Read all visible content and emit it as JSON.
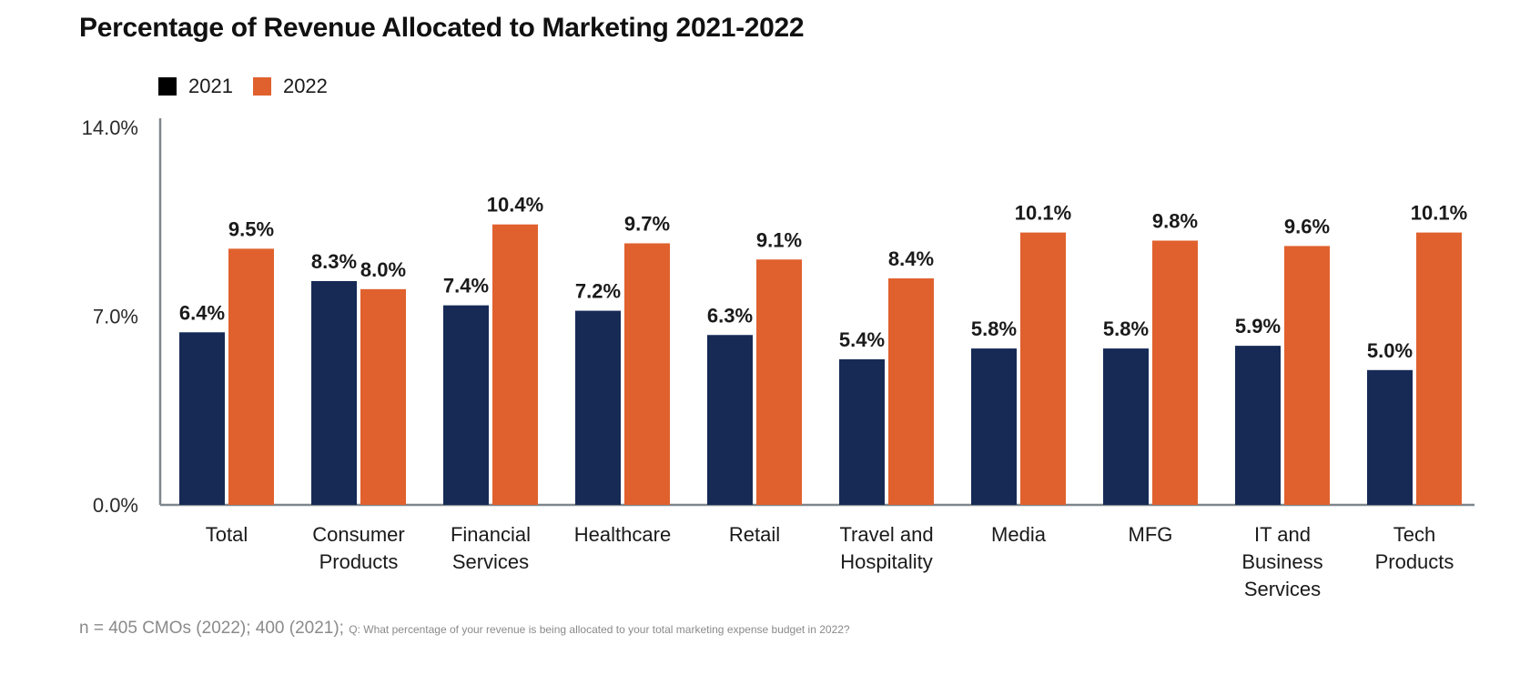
{
  "chart_data": {
    "type": "bar",
    "title": "Percentage of Revenue Allocated to Marketing 2021-2022",
    "xlabel": "",
    "ylabel": "",
    "ylim": [
      0,
      14
    ],
    "yticks": [
      {
        "value": 0,
        "label": "0.0%"
      },
      {
        "value": 7,
        "label": "7.0%"
      },
      {
        "value": 14,
        "label": "14.0%"
      }
    ],
    "grid": false,
    "legend_position": "top-left",
    "categories": [
      [
        "Total"
      ],
      [
        "Consumer",
        "Products"
      ],
      [
        "Financial",
        "Services"
      ],
      [
        "Healthcare"
      ],
      [
        "Retail"
      ],
      [
        "Travel and",
        "Hospitality"
      ],
      [
        "Media"
      ],
      [
        "MFG"
      ],
      [
        "IT and",
        "Business",
        "Services"
      ],
      [
        "Tech",
        "Products"
      ]
    ],
    "series": [
      {
        "name": "2021",
        "color": "#172a56",
        "values": [
          6.4,
          8.3,
          7.4,
          7.2,
          6.3,
          5.4,
          5.8,
          5.8,
          5.9,
          5.0
        ],
        "labels": [
          "6.4%",
          "8.3%",
          "7.4%",
          "7.2%",
          "6.3%",
          "5.4%",
          "5.8%",
          "5.8%",
          "5.9%",
          "5.0%"
        ]
      },
      {
        "name": "2022",
        "color": "#e0612e",
        "values": [
          9.5,
          8.0,
          10.4,
          9.7,
          9.1,
          8.4,
          10.1,
          9.8,
          9.6,
          10.1
        ],
        "labels": [
          "9.5%",
          "8.0%",
          "10.4%",
          "9.7%",
          "9.1%",
          "8.4%",
          "10.1%",
          "9.8%",
          "9.6%",
          "10.1%"
        ]
      }
    ]
  },
  "legend": {
    "items": [
      {
        "label": "2021",
        "color": "#000000"
      },
      {
        "label": "2022",
        "color": "#e0612e"
      }
    ]
  },
  "footnote": {
    "sample": "n = 405 CMOs (2022); 400 (2021);",
    "question": "Q: What percentage of your revenue is being allocated to your total marketing expense budget in 2022?"
  }
}
